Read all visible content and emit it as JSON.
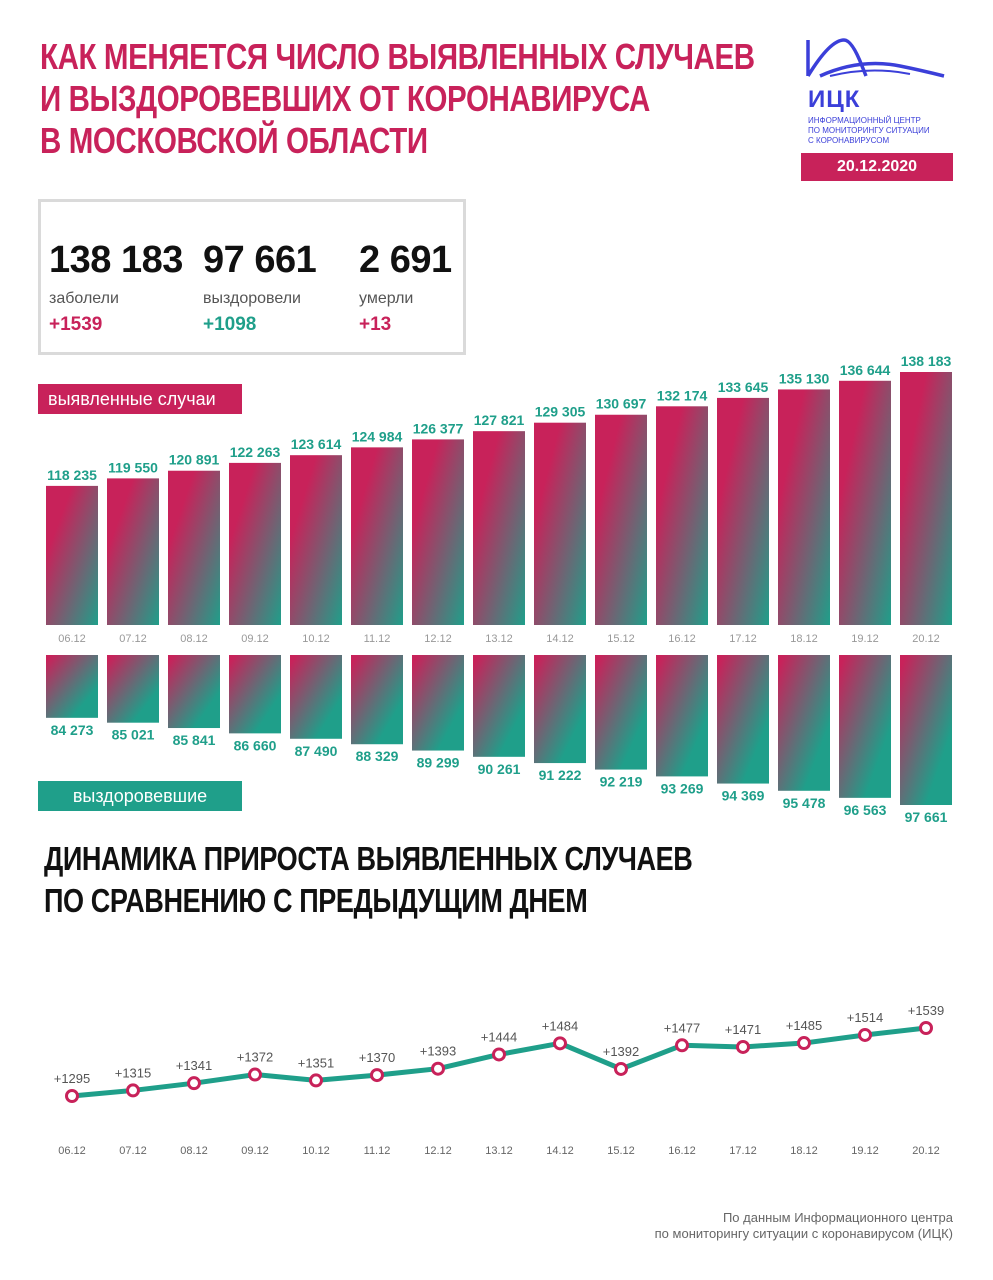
{
  "header": {
    "title_lines": [
      "Как меняется число выявленных случаев",
      "и выздоровевших от коронавируса",
      "в Московской области"
    ]
  },
  "logo": {
    "abbr": "ИЦК",
    "subtitle_lines": [
      "Информационный центр",
      "по мониторингу ситуации",
      "с коронавирусом"
    ]
  },
  "date": "20.12.2020",
  "stats": {
    "infected": {
      "value": "138 183",
      "label": "заболели",
      "delta": "+1539"
    },
    "recovered": {
      "value": "97 661",
      "label": "выздоровели",
      "delta": "+1098"
    },
    "died": {
      "value": "2 691",
      "label": "умерли",
      "delta": "+13"
    }
  },
  "tags": {
    "cases": "выявленные случаи",
    "recovered": "выздоровевшие"
  },
  "section2": {
    "title_lines": [
      "Динамика прироста выявленных случаев",
      "по сравнению с предыдущим днем"
    ]
  },
  "source": {
    "lines": [
      "По данным Информационного центра",
      "по мониторингу ситуации с коронавирусом (ИЦК)"
    ]
  },
  "colors": {
    "pink": "#c8225a",
    "green": "#1f9f8a",
    "blue": "#3b3fd9"
  },
  "chart_data": [
    {
      "type": "bar",
      "categories": [
        "06.12",
        "07.12",
        "08.12",
        "09.12",
        "10.12",
        "11.12",
        "12.12",
        "13.12",
        "14.12",
        "15.12",
        "16.12",
        "17.12",
        "18.12",
        "19.12",
        "20.12"
      ],
      "series": [
        {
          "name": "выявленные случаи",
          "values": [
            118235,
            119550,
            120891,
            122263,
            123614,
            124984,
            126377,
            127821,
            129305,
            130697,
            132174,
            133645,
            135130,
            136644,
            138183
          ],
          "labels": [
            "118 235",
            "119 550",
            "120 891",
            "122 263",
            "123 614",
            "124 984",
            "126 377",
            "127 821",
            "129 305",
            "130 697",
            "132 174",
            "133 645",
            "135 130",
            "136 644",
            "138 183"
          ]
        },
        {
          "name": "выздоровевшие",
          "values": [
            84273,
            85021,
            85841,
            86660,
            87490,
            88329,
            89299,
            90261,
            91222,
            92219,
            93269,
            94369,
            95478,
            96563,
            97661
          ],
          "labels": [
            "84 273",
            "85 021",
            "85 841",
            "86 660",
            "87 490",
            "88 329",
            "89 299",
            "90 261",
            "91 222",
            "92 219",
            "93 269",
            "94 369",
            "95 478",
            "96 563",
            "97 661"
          ]
        }
      ]
    },
    {
      "type": "line",
      "x": [
        "06.12",
        "07.12",
        "08.12",
        "09.12",
        "10.12",
        "11.12",
        "12.12",
        "13.12",
        "14.12",
        "15.12",
        "16.12",
        "17.12",
        "18.12",
        "19.12",
        "20.12"
      ],
      "series": [
        {
          "values": [
            1295,
            1315,
            1341,
            1372,
            1351,
            1370,
            1393,
            1444,
            1484,
            1392,
            1477,
            1471,
            1485,
            1514,
            1539
          ],
          "labels": [
            "+1295",
            "+1315",
            "+1341",
            "+1372",
            "+1351",
            "+1370",
            "+1393",
            "+1444",
            "+1484",
            "+1392",
            "+1477",
            "+1471",
            "+1485",
            "+1514",
            "+1539"
          ]
        }
      ]
    }
  ]
}
